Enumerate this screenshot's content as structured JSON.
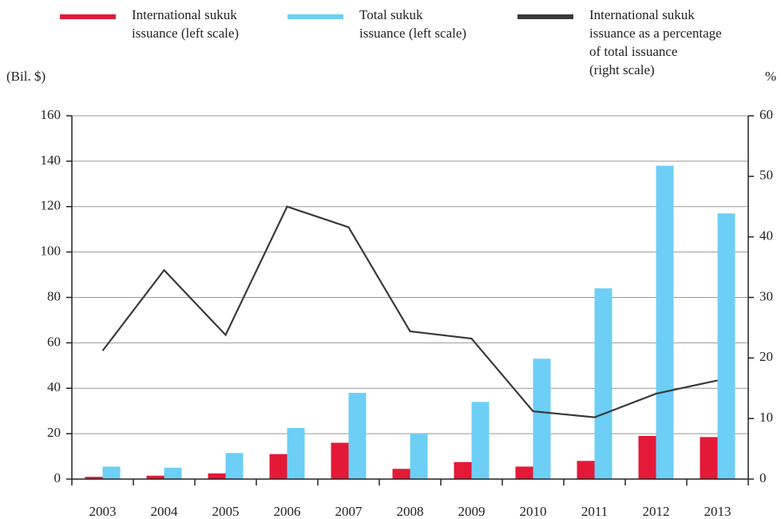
{
  "chart_data": {
    "type": "bar-line",
    "legend": [
      {
        "lines": [
          "International sukuk",
          "issuance (left scale)"
        ],
        "color": "#e31937"
      },
      {
        "lines": [
          "Total sukuk",
          "issuance (left scale)"
        ],
        "color": "#6dcff6"
      },
      {
        "lines": [
          "International sukuk",
          "issuance as a percentage",
          "of total issuance",
          "(right scale)"
        ],
        "color": "#3a3a3a"
      }
    ],
    "y_label": "(Bil. $)",
    "y2_label": "%",
    "categories": [
      "2003",
      "2004",
      "2005",
      "2006",
      "2007",
      "2008",
      "2009",
      "2010",
      "2011",
      "2012",
      "2013"
    ],
    "series": [
      {
        "name": "International sukuk issuance (left scale)",
        "color": "#e31937",
        "type": "bar",
        "values": [
          1,
          1.5,
          2.5,
          11,
          16,
          4.5,
          7.5,
          5.5,
          8,
          19,
          18.5
        ]
      },
      {
        "name": "Total sukuk issuance (left scale)",
        "color": "#6dcff6",
        "type": "bar",
        "values": [
          5.5,
          5,
          11.5,
          22.5,
          38,
          20,
          34,
          53,
          84,
          138,
          117
        ]
      },
      {
        "name": "International sukuk issuance as a percentage of total issuance (right scale)",
        "color": "#3a3a3a",
        "type": "line",
        "axis": "y2",
        "values": [
          21.2,
          34.5,
          23.8,
          45,
          41.6,
          24.4,
          23.2,
          11.2,
          10.2,
          14.1,
          16.3
        ]
      }
    ],
    "ylim": [
      0,
      160
    ],
    "yticks": [
      0,
      20,
      40,
      60,
      80,
      100,
      120,
      140,
      160
    ],
    "y2lim": [
      0,
      60
    ],
    "y2ticks": [
      0,
      10,
      20,
      30,
      40,
      50,
      60
    ],
    "grid": true
  }
}
